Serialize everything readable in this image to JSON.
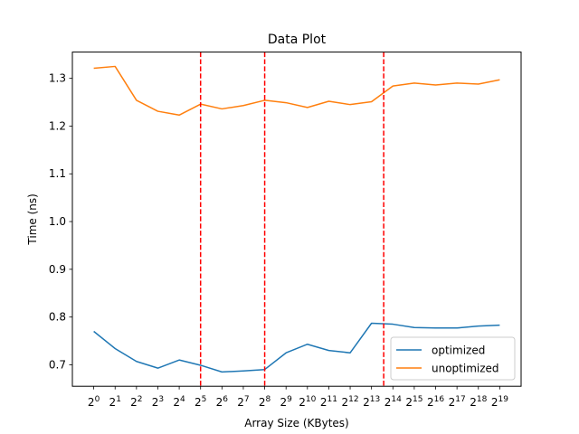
{
  "chart_data": {
    "type": "line",
    "title": "Data Plot",
    "xlabel": "Array Size (KBytes)",
    "ylabel": "Time (ns)",
    "x": [
      0,
      1,
      2,
      3,
      4,
      5,
      6,
      7,
      8,
      9,
      10,
      11,
      12,
      13,
      14,
      15,
      16,
      17,
      18,
      19
    ],
    "x_tick_base": "2",
    "ylim": [
      0.655,
      1.355
    ],
    "y_ticks": [
      0.7,
      0.8,
      0.9,
      1.0,
      1.1,
      1.2,
      1.3
    ],
    "y_tick_labels": [
      "0.7",
      "0.8",
      "0.9",
      "1.0",
      "1.1",
      "1.2",
      "1.3"
    ],
    "grid": false,
    "legend_position": "lower-right",
    "series": [
      {
        "name": "optimized",
        "color": "#1f77b4",
        "values": [
          0.77,
          0.734,
          0.707,
          0.693,
          0.71,
          0.699,
          0.685,
          0.687,
          0.69,
          0.725,
          0.743,
          0.73,
          0.725,
          0.787,
          0.785,
          0.778,
          0.777,
          0.777,
          0.781,
          0.783
        ]
      },
      {
        "name": "unoptimized",
        "color": "#ff7f0e",
        "values": [
          1.321,
          1.325,
          1.254,
          1.231,
          1.223,
          1.246,
          1.236,
          1.243,
          1.254,
          1.249,
          1.239,
          1.252,
          1.245,
          1.251,
          1.284,
          1.29,
          1.286,
          1.29,
          1.288,
          1.297
        ]
      }
    ],
    "vlines": {
      "x": [
        5,
        8,
        13.57
      ],
      "color": "#ff0000",
      "style": "dashed"
    }
  }
}
